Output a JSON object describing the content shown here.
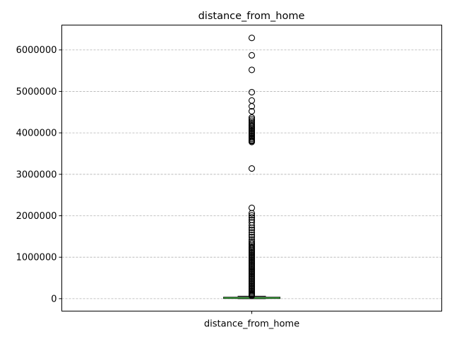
{
  "chart_data": {
    "type": "box",
    "title": "distance_from_home",
    "categories": [
      "distance_from_home"
    ],
    "xlabel": "",
    "ylabel": "",
    "ylim": [
      -300000,
      6600000
    ],
    "yticks": [
      0,
      1000000,
      2000000,
      3000000,
      4000000,
      5000000,
      6000000
    ],
    "ytick_labels": [
      "0",
      "1000000",
      "2000000",
      "3000000",
      "4000000",
      "5000000",
      "6000000"
    ],
    "grid": "y-dashed",
    "box": {
      "q1": 4000,
      "median": 17000,
      "q3": 35000,
      "whisker_low": 0,
      "whisker_high": 60000
    },
    "outliers": [
      6290000,
      5870000,
      5520000,
      4980000,
      4780000,
      4640000,
      4520000,
      4370000,
      4330000,
      4290000,
      4250000,
      4210000,
      4180000,
      4150000,
      4120000,
      4090000,
      4060000,
      4030000,
      4000000,
      3970000,
      3940000,
      3910000,
      3880000,
      3850000,
      3820000,
      3800000,
      3780000,
      3140000,
      2190000,
      2060000,
      2010000,
      1960000,
      1900000,
      1840000,
      1770000,
      1710000,
      1660000,
      1600000,
      1540000,
      1490000,
      1430000,
      1380000,
      1340000,
      1300000,
      1260000,
      1230000,
      1200000,
      1170000,
      1140000,
      1110000,
      1080000,
      1050000,
      1020000,
      990000,
      960000,
      930000,
      900000,
      870000,
      840000,
      810000,
      780000,
      750000,
      720000,
      690000,
      660000,
      630000,
      600000,
      570000,
      540000,
      510000,
      480000,
      450000,
      420000,
      390000,
      360000,
      330000,
      300000,
      270000,
      240000,
      210000,
      180000,
      150000,
      120000,
      100000,
      85000,
      70000
    ],
    "colors": {
      "box": "#000000",
      "median": "#2ca02c",
      "grid": "#b0b0b0",
      "outlier_edge": "#000000"
    }
  }
}
